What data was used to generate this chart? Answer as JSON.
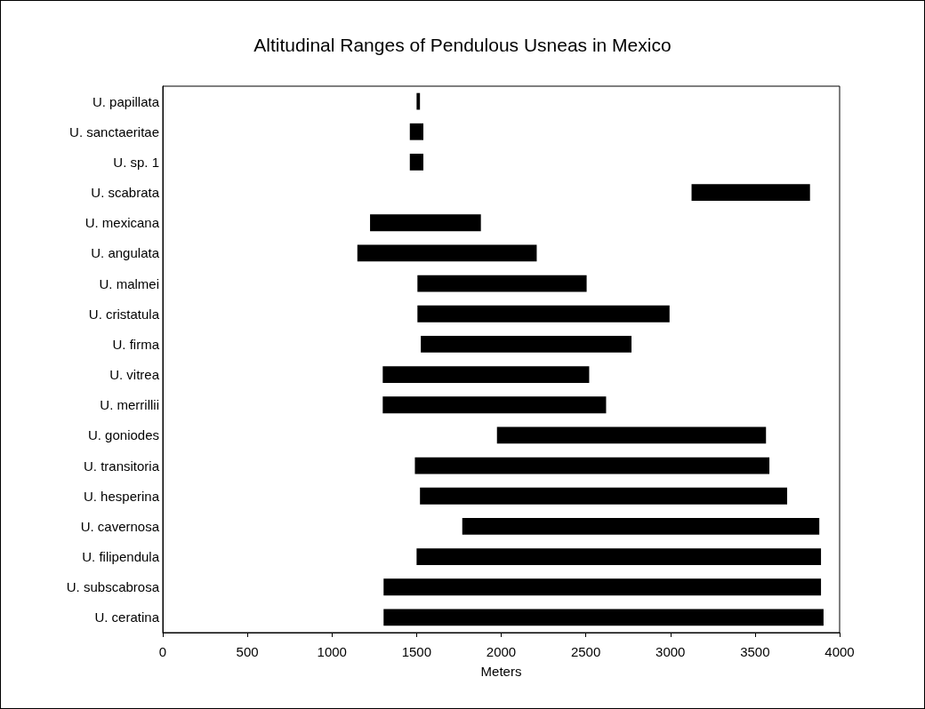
{
  "chart_data": {
    "type": "bar",
    "orientation": "horizontal",
    "title": "Altitudinal Ranges of Pendulous Usneas in Mexico",
    "xlabel": "Meters",
    "categories": [
      "U. papillata",
      "U. sanctaeritae",
      "U. sp. 1",
      "U. scabrata",
      "U. mexicana",
      "U. angulata",
      "U. malmei",
      "U. cristatula",
      "U. firma",
      "U. vitrea",
      "U. merrillii",
      "U. goniodes",
      "U. transitoria",
      "U. hesperina",
      "U. cavernosa",
      "U. filipendula",
      "U. subscabrosa",
      "U. ceratina"
    ],
    "base": [
      1500,
      1460,
      1460,
      3125,
      1225,
      1150,
      1505,
      1505,
      1525,
      1300,
      1300,
      1975,
      1490,
      1520,
      1770,
      1500,
      1305,
      1305
    ],
    "values": [
      20,
      80,
      80,
      700,
      655,
      1060,
      1000,
      1490,
      1245,
      1220,
      1320,
      1590,
      2095,
      2170,
      2110,
      2390,
      2585,
      2600
    ],
    "color": "#000000",
    "xlim": [
      0,
      4000
    ],
    "xticks": [
      0,
      500,
      1000,
      1500,
      2000,
      2500,
      3000,
      3500,
      4000
    ],
    "grid": false
  }
}
